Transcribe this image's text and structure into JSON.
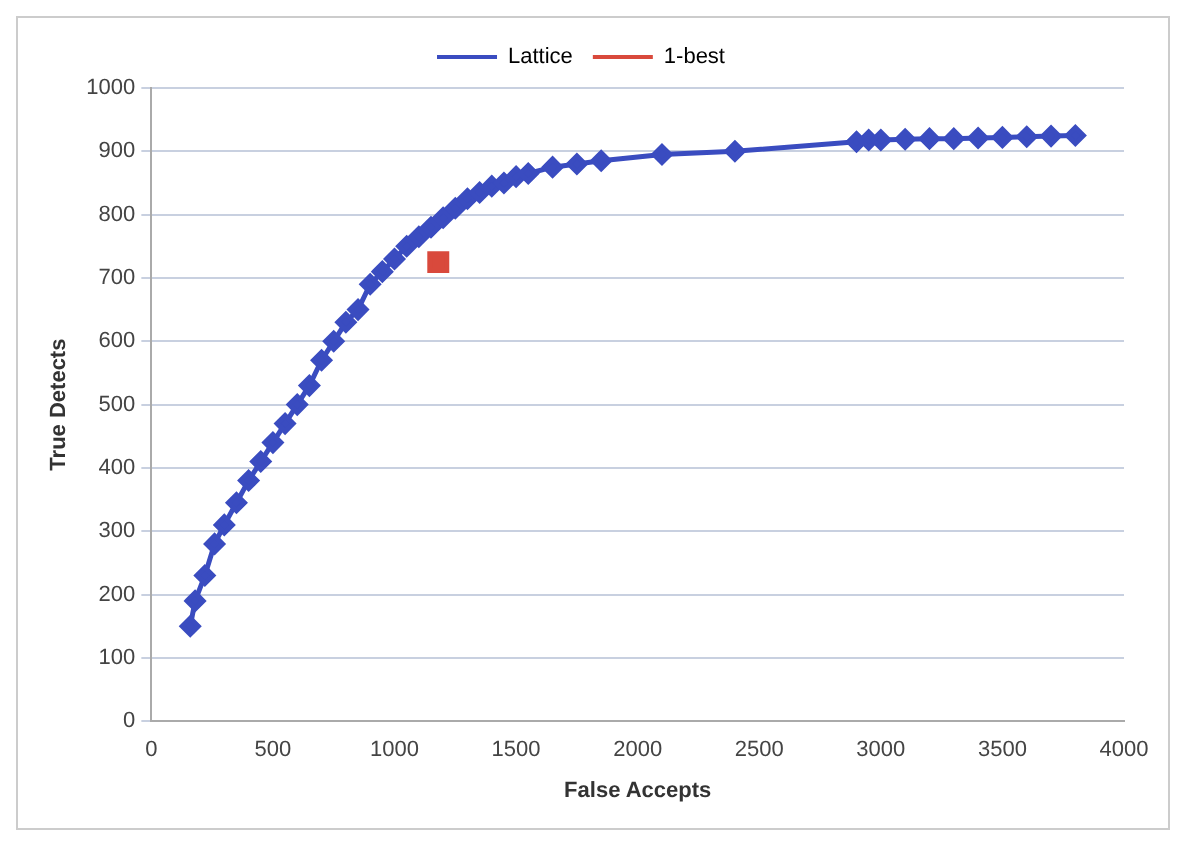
{
  "chart_data": {
    "type": "line",
    "xlabel": "False Accepts",
    "ylabel": "True Detects",
    "xlim": [
      0,
      4000
    ],
    "xticks": [
      0,
      500,
      1000,
      1500,
      2000,
      2500,
      3000,
      3500,
      4000
    ],
    "ylim": [
      0,
      1000
    ],
    "yticks": [
      0,
      100,
      200,
      300,
      400,
      500,
      600,
      700,
      800,
      900,
      1000
    ],
    "grid": "y",
    "legend": "top",
    "series": [
      {
        "name": "Lattice",
        "color": "#3a4cc0",
        "marker": "diamond",
        "x": [
          160,
          180,
          220,
          260,
          300,
          350,
          400,
          450,
          500,
          550,
          600,
          650,
          700,
          750,
          800,
          850,
          900,
          950,
          1000,
          1050,
          1100,
          1150,
          1200,
          1250,
          1300,
          1350,
          1400,
          1450,
          1500,
          1550,
          1650,
          1750,
          1850,
          2100,
          2400,
          2900,
          2950,
          3000,
          3100,
          3200,
          3300,
          3400,
          3500,
          3600,
          3700,
          3800
        ],
        "values": [
          150,
          190,
          230,
          280,
          310,
          345,
          380,
          410,
          440,
          470,
          500,
          530,
          570,
          600,
          630,
          650,
          690,
          710,
          730,
          750,
          765,
          780,
          795,
          810,
          825,
          835,
          845,
          850,
          860,
          865,
          875,
          880,
          885,
          895,
          900,
          915,
          918,
          918,
          919,
          920,
          920,
          921,
          922,
          923,
          924,
          925
        ]
      },
      {
        "name": "1-best",
        "color": "#d9493c",
        "type": "scatter",
        "marker": "square",
        "x": [
          1180
        ],
        "values": [
          725
        ]
      }
    ]
  }
}
